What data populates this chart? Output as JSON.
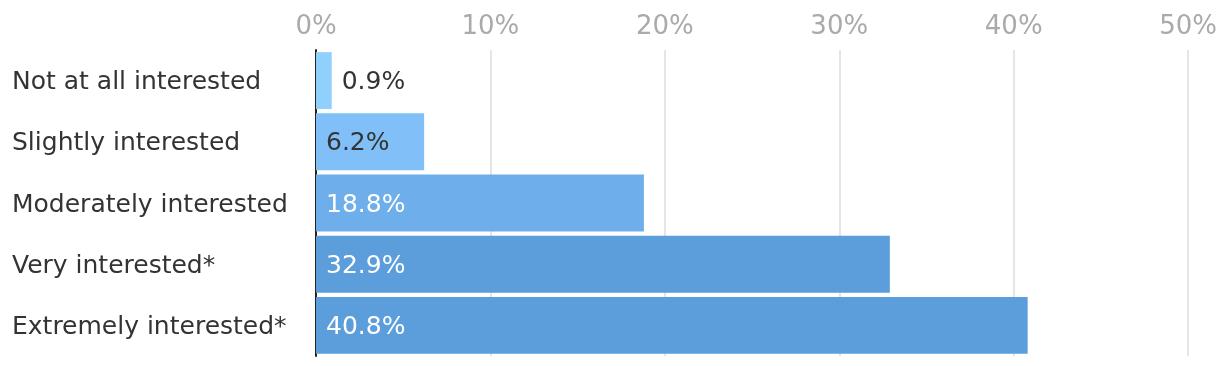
{
  "chart_data": {
    "type": "bar",
    "orientation": "horizontal",
    "categories": [
      "Not at all interested",
      "Slightly interested",
      "Moderately interested",
      "Very interested*",
      "Extremely interested*"
    ],
    "values": [
      0.9,
      6.2,
      18.8,
      32.9,
      40.8
    ],
    "colors": [
      "#8fd0fc",
      "#80bff7",
      "#6eaeea",
      "#5b9edb",
      "#5b9edb"
    ],
    "value_labels": [
      "0.9%",
      "6.2%",
      "18.8%",
      "32.9%",
      "40.8%"
    ],
    "xlim": [
      0,
      50
    ],
    "xticks": [
      {
        "value": 0,
        "label": "0%"
      },
      {
        "value": 10,
        "label": "10%"
      },
      {
        "value": 20,
        "label": "20%"
      },
      {
        "value": 30,
        "label": "30%"
      },
      {
        "value": 40,
        "label": "40%"
      },
      {
        "value": 50,
        "label": "50%"
      }
    ],
    "grid": "x"
  }
}
